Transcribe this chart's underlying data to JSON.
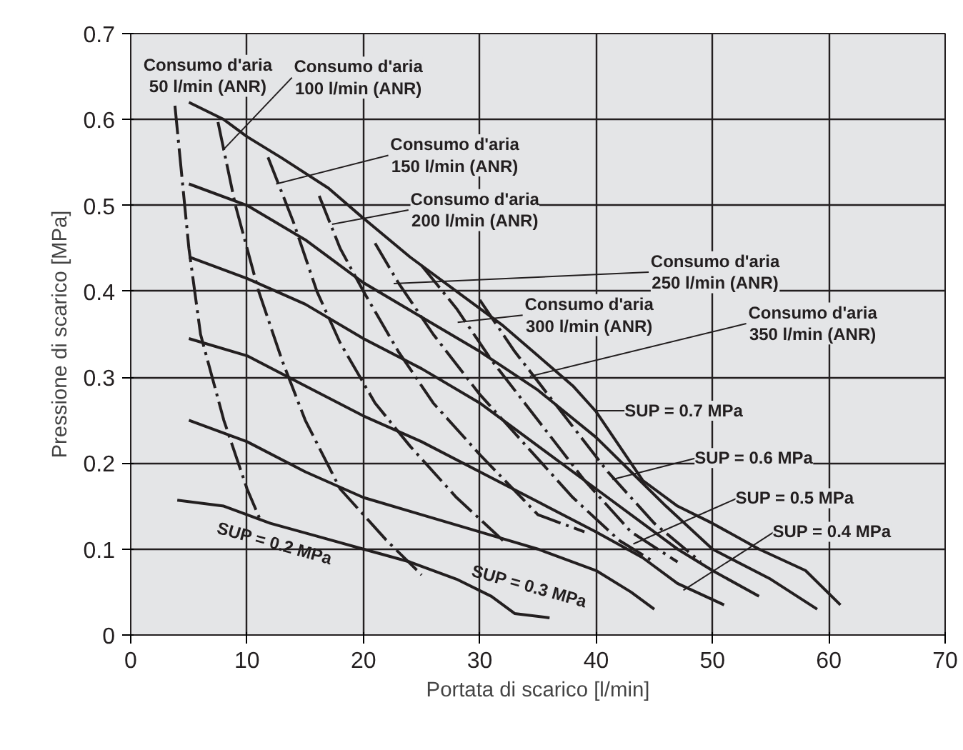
{
  "chart_data": {
    "type": "line",
    "xlabel": "Portata di scarico [l/min]",
    "ylabel": "Pressione di scarico [MPa]",
    "xlim": [
      0,
      70
    ],
    "ylim": [
      0,
      0.7
    ],
    "xticks": [
      0,
      10,
      20,
      30,
      40,
      50,
      60,
      70
    ],
    "yticks": [
      0,
      0.1,
      0.2,
      0.3,
      0.4,
      0.5,
      0.6,
      0.7
    ],
    "grid": true,
    "marker": "none",
    "series": [
      {
        "color": "#231f20",
        "line_style": "solid",
        "x": [
          5,
          8,
          10,
          13,
          17,
          20,
          24,
          28,
          32,
          35,
          38,
          40,
          42,
          44,
          47,
          50,
          54,
          58,
          61
        ],
        "values": [
          0.62,
          0.6,
          0.58,
          0.555,
          0.52,
          0.485,
          0.44,
          0.4,
          0.36,
          0.325,
          0.29,
          0.26,
          0.22,
          0.18,
          0.15,
          0.13,
          0.1,
          0.075,
          0.035
        ]
      },
      {
        "color": "#231f20",
        "line_style": "solid",
        "x": [
          5,
          10,
          15,
          20,
          25,
          30,
          35,
          40,
          43,
          46,
          50,
          55,
          59
        ],
        "values": [
          0.525,
          0.5,
          0.46,
          0.41,
          0.37,
          0.33,
          0.285,
          0.23,
          0.19,
          0.15,
          0.1,
          0.065,
          0.03
        ]
      },
      {
        "color": "#231f20",
        "line_style": "solid",
        "x": [
          5,
          10,
          15,
          20,
          25,
          30,
          35,
          40,
          44,
          47,
          50,
          54
        ],
        "values": [
          0.44,
          0.415,
          0.385,
          0.345,
          0.31,
          0.27,
          0.22,
          0.17,
          0.13,
          0.1,
          0.075,
          0.045
        ]
      },
      {
        "color": "#231f20",
        "line_style": "solid",
        "x": [
          5,
          10,
          15,
          20,
          25,
          30,
          35,
          40,
          44,
          47,
          51
        ],
        "values": [
          0.345,
          0.325,
          0.29,
          0.255,
          0.225,
          0.19,
          0.155,
          0.12,
          0.09,
          0.06,
          0.035
        ]
      },
      {
        "color": "#231f20",
        "line_style": "solid",
        "x": [
          5,
          10,
          15,
          20,
          25,
          30,
          35,
          40,
          43,
          45
        ],
        "values": [
          0.25,
          0.225,
          0.19,
          0.16,
          0.14,
          0.12,
          0.1,
          0.075,
          0.05,
          0.03
        ]
      },
      {
        "color": "#231f20",
        "line_style": "solid",
        "x": [
          4,
          8,
          12,
          16,
          20,
          24,
          28,
          31,
          33,
          36
        ],
        "values": [
          0.157,
          0.15,
          0.13,
          0.115,
          0.1,
          0.085,
          0.065,
          0.045,
          0.025,
          0.02
        ]
      },
      {
        "color": "#231f20",
        "line_style": "dashed",
        "x": [
          3.8,
          5,
          6,
          8,
          10,
          11.1
        ],
        "values": [
          0.616,
          0.45,
          0.35,
          0.25,
          0.17,
          0.135
        ]
      },
      {
        "color": "#231f20",
        "line_style": "dashed",
        "x": [
          7.5,
          9,
          11,
          13,
          15,
          18,
          22,
          25
        ],
        "values": [
          0.597,
          0.5,
          0.4,
          0.32,
          0.25,
          0.17,
          0.11,
          0.07
        ]
      },
      {
        "color": "#231f20",
        "line_style": "dashed",
        "x": [
          11.8,
          14,
          16,
          18,
          21,
          24,
          28,
          32
        ],
        "values": [
          0.556,
          0.48,
          0.4,
          0.34,
          0.27,
          0.22,
          0.16,
          0.11
        ]
      },
      {
        "color": "#231f20",
        "line_style": "dashed",
        "x": [
          16.2,
          18,
          20,
          23,
          26,
          30,
          35,
          39
        ],
        "values": [
          0.511,
          0.45,
          0.4,
          0.33,
          0.27,
          0.21,
          0.14,
          0.12
        ]
      },
      {
        "color": "#231f20",
        "line_style": "dashed",
        "x": [
          21,
          23,
          26,
          30,
          34,
          38,
          42,
          45
        ],
        "values": [
          0.456,
          0.41,
          0.35,
          0.28,
          0.22,
          0.16,
          0.11,
          0.085
        ]
      },
      {
        "color": "#231f20",
        "line_style": "dashed",
        "x": [
          25,
          28,
          31,
          35,
          39,
          43,
          47
        ],
        "values": [
          0.43,
          0.38,
          0.32,
          0.25,
          0.18,
          0.12,
          0.085
        ]
      },
      {
        "color": "#231f20",
        "line_style": "dashed",
        "x": [
          30,
          33,
          37,
          41,
          45,
          49
        ],
        "values": [
          0.39,
          0.33,
          0.26,
          0.19,
          0.13,
          0.085
        ]
      }
    ],
    "annotations": [
      {
        "text": "Consumo d'aria\n50 l/min (ANR)",
        "x": 3.8,
        "y": 0.616
      },
      {
        "text": "Consumo d'aria\n100 l/min (ANR)",
        "x": 7.9,
        "y": 0.564
      },
      {
        "text": "Consumo d'aria\n150 l/min (ANR)",
        "x": 12.5,
        "y": 0.525
      },
      {
        "text": "Consumo d'aria\n200 l/min (ANR)",
        "x": 17.3,
        "y": 0.478
      },
      {
        "text": "Consumo d'aria\n250 l/min (ANR)",
        "x": 22.6,
        "y": 0.409
      },
      {
        "text": "Consumo d'aria\n300 l/min (ANR)",
        "x": 28.1,
        "y": 0.364
      },
      {
        "text": "Consumo d'aria\n350 l/min (ANR)",
        "x": 34.3,
        "y": 0.301
      },
      {
        "text": "SUP = 0.7 MPa",
        "x": 39.8,
        "y": 0.261
      },
      {
        "text": "SUP = 0.6 MPa",
        "x": 41.4,
        "y": 0.181
      },
      {
        "text": "SUP = 0.5 MPa",
        "x": 43.2,
        "y": 0.106
      },
      {
        "text": "SUP = 0.4 MPa",
        "x": 47.5,
        "y": 0.052
      },
      {
        "text": "SUP = 0.2 MPa",
        "x": 12,
        "y": 0.13
      },
      {
        "text": "SUP = 0.3 MPa",
        "x": 35,
        "y": 0.1
      }
    ]
  }
}
